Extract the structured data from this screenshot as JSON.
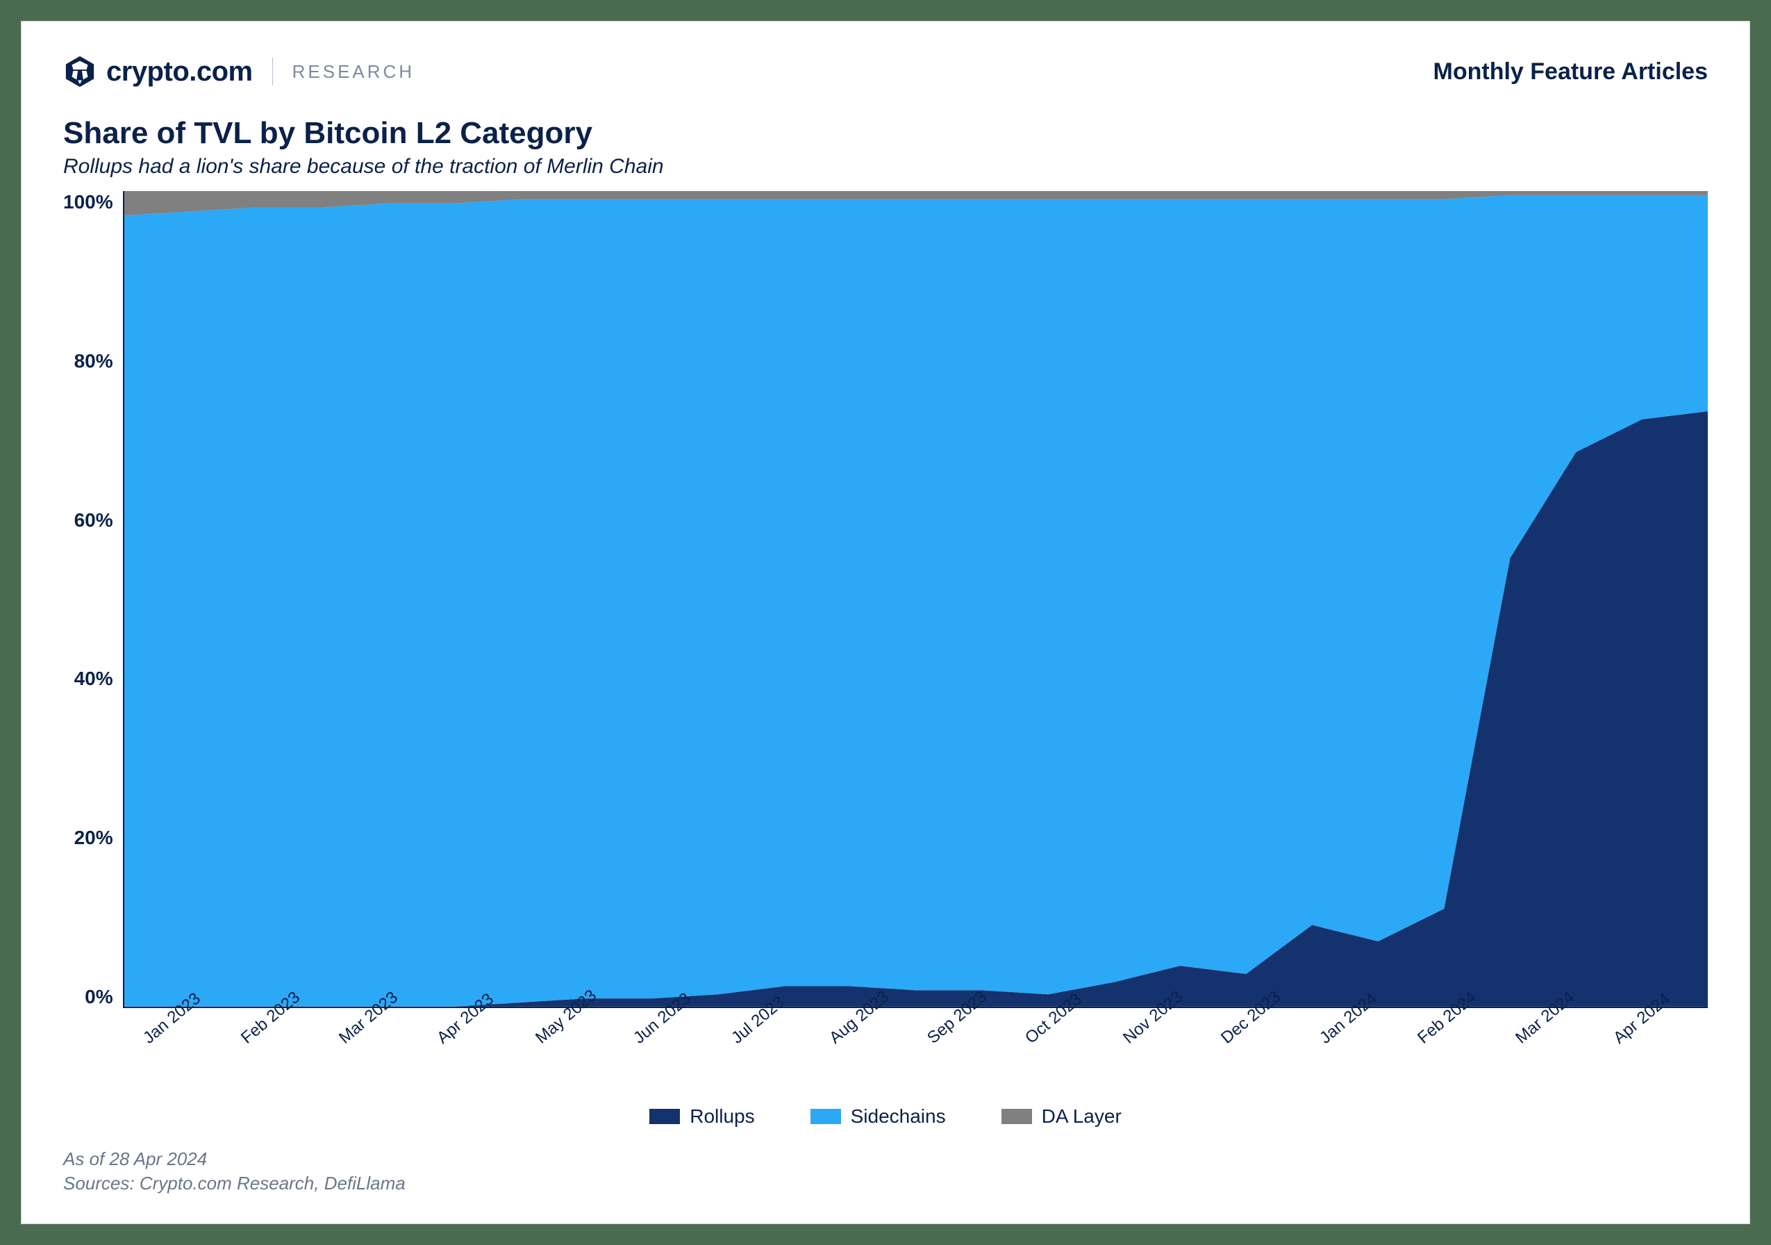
{
  "header": {
    "brand_text": "crypto.com",
    "research_label": "RESEARCH",
    "feature_label": "Monthly Feature Articles",
    "logo_bg": "#0b214a",
    "logo_fg": "#ffffff"
  },
  "chart": {
    "type": "stacked-area-100pct",
    "title": "Share of TVL by Bitcoin L2 Category",
    "subtitle": "Rollups had a lion's share because of the traction of Merlin Chain",
    "title_fontsize": 44,
    "subtitle_fontsize": 30,
    "title_color": "#0b214a",
    "background_color": "#ffffff",
    "ylim": [
      0,
      100
    ],
    "ytick_step": 20,
    "y_ticks": [
      "100%",
      "80%",
      "60%",
      "40%",
      "20%",
      "0%"
    ],
    "y_label_fontsize": 28,
    "x_labels": [
      "Jan 2023",
      "Feb 2023",
      "Mar 2023",
      "Apr 2023",
      "May 2023",
      "Jun 2023",
      "Jul 2023",
      "Aug 2023",
      "Sep 2023",
      "Oct 2023",
      "Nov 2023",
      "Dec 2023",
      "Jan 2024",
      "Feb 2024",
      "Mar 2024",
      "Apr 2024"
    ],
    "x_label_fontsize": 24,
    "x_label_rotation_deg": -40,
    "series": [
      {
        "name": "Rollups",
        "color": "#13326e",
        "values_pct": [
          0,
          0,
          0,
          0,
          0,
          0,
          0.5,
          1,
          1,
          1.5,
          2.5,
          2.5,
          2,
          2,
          1.5,
          3,
          5,
          4,
          10,
          8,
          12,
          55,
          68,
          72,
          73
        ]
      },
      {
        "name": "Sidechains",
        "color": "#2ba8f6",
        "values_pct": [
          97,
          97.5,
          98,
          98,
          98.5,
          98.5,
          98.5,
          98,
          98,
          97.5,
          96.5,
          96.5,
          97,
          97,
          97.5,
          96,
          94,
          95,
          89,
          91,
          87,
          44.5,
          31.5,
          27.5,
          26.5
        ]
      },
      {
        "name": "DA Layer",
        "color": "#808080",
        "values_pct": [
          3,
          2.5,
          2,
          2,
          1.5,
          1.5,
          1,
          1,
          1,
          1,
          1,
          1,
          1,
          1,
          1,
          1,
          1,
          1,
          1,
          1,
          1,
          0.5,
          0.5,
          0.5,
          0.5
        ]
      }
    ],
    "legend_fontsize": 28,
    "axis_color": "#0b214a"
  },
  "footnote": {
    "line1": "As of 28 Apr 2024",
    "line2": "Sources: Crypto.com Research, DefiLlama",
    "color": "#6b7688",
    "fontsize": 26
  },
  "frame": {
    "outer_bg": "#4a6b4f",
    "card_bg": "#ffffff",
    "card_border": "#d0d0d0"
  }
}
